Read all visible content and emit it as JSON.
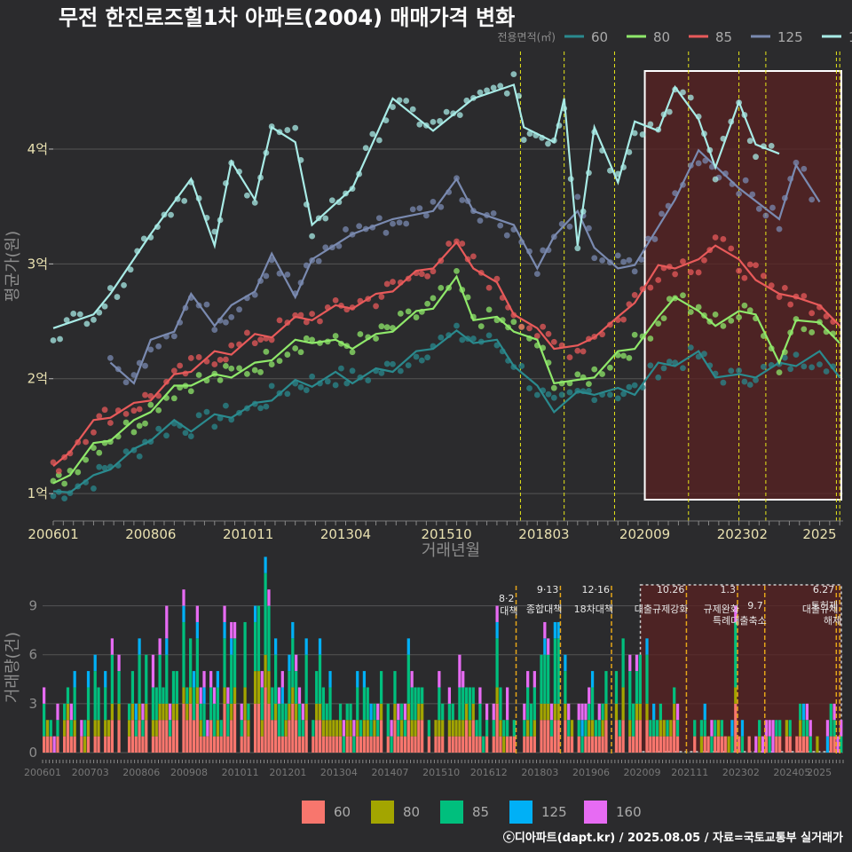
{
  "title": "무전 한진로즈힐1차 아파트(2004) 매매가격 변화",
  "footer": "ⓒ디아파트(dapt.kr) / 2025.08.05 / 자료=국토교통부 실거래가",
  "colors": {
    "background": "#2b2b2d",
    "grid": "#555555",
    "highlight_fill": "#5a2222",
    "event_line": "#e6e619",
    "event_line_bottom": "#e6a619"
  },
  "chart_data": [
    {
      "type": "line",
      "title": "무전 한진로즈힐1차 아파트(2004) 매매가격 변화",
      "xlabel": "거래년월",
      "ylabel": "평균가(원)",
      "x_ticks": [
        "200601",
        "200806",
        "201011",
        "201304",
        "201510",
        "201803",
        "202009",
        "202302",
        "2025"
      ],
      "y_ticks": [
        {
          "value": 1,
          "label": "1억"
        },
        {
          "value": 2,
          "label": "2억"
        },
        {
          "value": 3,
          "label": "3억"
        },
        {
          "value": 4,
          "label": "4억"
        }
      ],
      "ylim": [
        0.8,
        4.85
      ],
      "x_range": [
        "2006-01",
        "2025-08"
      ],
      "legend_title": "전용면적(㎡)",
      "legend_position": "top-right",
      "highlight": {
        "x_start": "2020-09",
        "x_end": "2025-08"
      },
      "events": [
        "2017-08",
        "2018-09",
        "2019-12",
        "2021-10",
        "2023-01",
        "2023-09",
        "2025-06",
        "2025-07"
      ],
      "series": [
        {
          "name": "60",
          "color": "#2a8a8e",
          "values": [
            [
              "2006-01",
              0.98
            ],
            [
              "2006-06",
              1.05
            ],
            [
              "2007-01",
              1.12
            ],
            [
              "2007-06",
              1.25
            ],
            [
              "2008-01",
              1.35
            ],
            [
              "2008-06",
              1.5
            ],
            [
              "2009-01",
              1.6
            ],
            [
              "2009-06",
              1.58
            ],
            [
              "2010-01",
              1.65
            ],
            [
              "2010-06",
              1.7
            ],
            [
              "2011-01",
              1.75
            ],
            [
              "2011-06",
              1.85
            ],
            [
              "2012-01",
              1.95
            ],
            [
              "2012-06",
              1.97
            ],
            [
              "2013-01",
              2.02
            ],
            [
              "2013-06",
              2.0
            ],
            [
              "2014-01",
              2.05
            ],
            [
              "2014-06",
              2.1
            ],
            [
              "2015-01",
              2.2
            ],
            [
              "2015-06",
              2.3
            ],
            [
              "2016-01",
              2.38
            ],
            [
              "2016-06",
              2.35
            ],
            [
              "2017-01",
              2.3
            ],
            [
              "2017-06",
              2.15
            ],
            [
              "2018-01",
              1.9
            ],
            [
              "2018-06",
              1.75
            ],
            [
              "2019-01",
              1.85
            ],
            [
              "2019-06",
              1.9
            ],
            [
              "2020-01",
              1.88
            ],
            [
              "2020-06",
              1.9
            ],
            [
              "2021-01",
              2.1
            ],
            [
              "2021-06",
              2.15
            ],
            [
              "2022-01",
              2.2
            ],
            [
              "2022-06",
              2.05
            ],
            [
              "2023-01",
              2.0
            ],
            [
              "2023-06",
              2.05
            ],
            [
              "2024-01",
              2.1
            ],
            [
              "2024-06",
              2.15
            ],
            [
              "2025-01",
              2.2
            ],
            [
              "2025-07",
              2.05
            ]
          ]
        },
        {
          "name": "80",
          "color": "#8fe86a",
          "values": [
            [
              "2006-01",
              1.05
            ],
            [
              "2006-06",
              1.2
            ],
            [
              "2007-01",
              1.4
            ],
            [
              "2007-06",
              1.5
            ],
            [
              "2008-01",
              1.6
            ],
            [
              "2008-06",
              1.75
            ],
            [
              "2009-01",
              1.9
            ],
            [
              "2009-06",
              1.98
            ],
            [
              "2010-01",
              2.0
            ],
            [
              "2010-06",
              2.05
            ],
            [
              "2011-01",
              2.1
            ],
            [
              "2011-06",
              2.2
            ],
            [
              "2012-01",
              2.3
            ],
            [
              "2012-06",
              2.35
            ],
            [
              "2013-01",
              2.3
            ],
            [
              "2013-06",
              2.3
            ],
            [
              "2014-01",
              2.35
            ],
            [
              "2014-06",
              2.45
            ],
            [
              "2015-01",
              2.55
            ],
            [
              "2015-06",
              2.65
            ],
            [
              "2016-01",
              2.85
            ],
            [
              "2016-06",
              2.55
            ],
            [
              "2017-01",
              2.5
            ],
            [
              "2017-06",
              2.45
            ],
            [
              "2018-01",
              2.3
            ],
            [
              "2018-06",
              2.0
            ],
            [
              "2019-01",
              1.95
            ],
            [
              "2019-06",
              2.05
            ],
            [
              "2020-01",
              2.2
            ],
            [
              "2020-06",
              2.3
            ],
            [
              "2021-01",
              2.5
            ],
            [
              "2021-06",
              2.75
            ],
            [
              "2022-01",
              2.55
            ],
            [
              "2022-06",
              2.5
            ],
            [
              "2023-01",
              2.55
            ],
            [
              "2023-06",
              2.6
            ],
            [
              "2024-01",
              2.1
            ],
            [
              "2024-06",
              2.55
            ],
            [
              "2025-01",
              2.45
            ],
            [
              "2025-07",
              2.35
            ]
          ]
        },
        {
          "name": "85",
          "color": "#e85a5a",
          "values": [
            [
              "2006-01",
              1.2
            ],
            [
              "2006-06",
              1.4
            ],
            [
              "2007-01",
              1.6
            ],
            [
              "2007-06",
              1.7
            ],
            [
              "2008-01",
              1.75
            ],
            [
              "2008-06",
              1.85
            ],
            [
              "2009-01",
              2.0
            ],
            [
              "2009-06",
              2.1
            ],
            [
              "2010-01",
              2.2
            ],
            [
              "2010-06",
              2.25
            ],
            [
              "2011-01",
              2.35
            ],
            [
              "2011-06",
              2.4
            ],
            [
              "2012-01",
              2.5
            ],
            [
              "2012-06",
              2.55
            ],
            [
              "2013-01",
              2.6
            ],
            [
              "2013-06",
              2.65
            ],
            [
              "2014-01",
              2.7
            ],
            [
              "2014-06",
              2.8
            ],
            [
              "2015-01",
              2.9
            ],
            [
              "2015-06",
              3.0
            ],
            [
              "2016-01",
              3.15
            ],
            [
              "2016-06",
              3.0
            ],
            [
              "2017-01",
              2.8
            ],
            [
              "2017-06",
              2.6
            ],
            [
              "2018-01",
              2.4
            ],
            [
              "2018-06",
              2.3
            ],
            [
              "2019-01",
              2.25
            ],
            [
              "2019-06",
              2.4
            ],
            [
              "2020-01",
              2.5
            ],
            [
              "2020-06",
              2.7
            ],
            [
              "2021-01",
              2.95
            ],
            [
              "2021-06",
              3.0
            ],
            [
              "2022-01",
              3.0
            ],
            [
              "2022-06",
              3.2
            ],
            [
              "2023-01",
              3.0
            ],
            [
              "2023-06",
              2.9
            ],
            [
              "2024-01",
              2.7
            ],
            [
              "2024-06",
              2.75
            ],
            [
              "2025-01",
              2.6
            ],
            [
              "2025-07",
              2.5
            ]
          ]
        },
        {
          "name": "125",
          "color": "#7a8ab0",
          "values": [
            [
              "2007-06",
              2.1
            ],
            [
              "2008-01",
              2.0
            ],
            [
              "2008-06",
              2.3
            ],
            [
              "2009-01",
              2.45
            ],
            [
              "2009-06",
              2.7
            ],
            [
              "2010-01",
              2.5
            ],
            [
              "2010-06",
              2.6
            ],
            [
              "2011-01",
              2.8
            ],
            [
              "2011-06",
              3.05
            ],
            [
              "2012-01",
              2.75
            ],
            [
              "2012-06",
              3.0
            ],
            [
              "2013-06",
              3.3
            ],
            [
              "2014-06",
              3.35
            ],
            [
              "2015-06",
              3.5
            ],
            [
              "2016-01",
              3.7
            ],
            [
              "2016-06",
              3.5
            ],
            [
              "2017-06",
              3.3
            ],
            [
              "2018-01",
              3.0
            ],
            [
              "2018-06",
              3.2
            ],
            [
              "2019-01",
              3.5
            ],
            [
              "2019-06",
              3.1
            ],
            [
              "2020-01",
              3.0
            ],
            [
              "2020-06",
              2.95
            ],
            [
              "2021-06",
              3.6
            ],
            [
              "2022-01",
              3.95
            ],
            [
              "2023-01",
              3.7
            ],
            [
              "2024-01",
              3.35
            ],
            [
              "2024-06",
              3.9
            ],
            [
              "2025-01",
              3.5
            ]
          ]
        },
        {
          "name": "160",
          "color": "#a8ebe6",
          "values": [
            [
              "2006-01",
              2.4
            ],
            [
              "2007-01",
              2.6
            ],
            [
              "2007-06",
              2.7
            ],
            [
              "2008-06",
              3.3
            ],
            [
              "2009-06",
              3.7
            ],
            [
              "2010-01",
              3.2
            ],
            [
              "2010-06",
              3.85
            ],
            [
              "2011-01",
              3.6
            ],
            [
              "2011-06",
              4.15
            ],
            [
              "2012-01",
              4.1
            ],
            [
              "2012-06",
              3.3
            ],
            [
              "2013-06",
              3.7
            ],
            [
              "2014-06",
              4.4
            ],
            [
              "2015-06",
              4.2
            ],
            [
              "2016-06",
              4.4
            ],
            [
              "2017-06",
              4.6
            ],
            [
              "2017-09",
              4.15
            ],
            [
              "2018-06",
              4.1
            ],
            [
              "2018-09",
              4.4
            ],
            [
              "2019-01",
              3.2
            ],
            [
              "2019-06",
              4.15
            ],
            [
              "2020-01",
              3.75
            ],
            [
              "2020-06",
              4.2
            ],
            [
              "2021-01",
              4.2
            ],
            [
              "2021-06",
              4.5
            ],
            [
              "2022-01",
              4.3
            ],
            [
              "2022-06",
              3.8
            ],
            [
              "2023-01",
              4.45
            ],
            [
              "2023-06",
              4.0
            ],
            [
              "2024-01",
              4.0
            ]
          ]
        }
      ]
    },
    {
      "type": "bar",
      "ylabel": "거래량(건)",
      "ylim": [
        0,
        10.5
      ],
      "y_ticks": [
        0,
        3,
        6,
        9
      ],
      "x_ticks": [
        "200601",
        "200703",
        "200806",
        "200908",
        "201011",
        "201201",
        "201304",
        "201407",
        "201510",
        "201612",
        "201803",
        "201906",
        "202009",
        "202111",
        "202302",
        "202405",
        "2025"
      ],
      "stacked": true,
      "legend_position": "bottom",
      "series_names": [
        "60",
        "80",
        "85",
        "125",
        "160"
      ],
      "series_colors": [
        "#f8766d",
        "#a3a500",
        "#00bf7d",
        "#00b0f6",
        "#e76bf3"
      ],
      "sample_months": [
        "2006-06",
        "2007-06",
        "2008-06",
        "2009-06",
        "2010-06",
        "2011-06",
        "2012-06",
        "2013-06",
        "2014-06",
        "2015-06",
        "2016-06",
        "2017-06",
        "2018-06",
        "2019-06",
        "2020-06",
        "2021-06",
        "2022-06",
        "2023-06",
        "2024-06",
        "2025-06"
      ],
      "sample_totals": [
        3,
        5,
        6,
        7,
        5,
        8,
        5,
        4,
        4,
        5,
        4,
        3,
        6,
        4,
        5,
        4,
        2,
        2,
        2,
        3
      ],
      "events": [
        {
          "date": "2017-08",
          "label": "8·2 대책"
        },
        {
          "date": "2018-09",
          "label": "9·13 종합대책"
        },
        {
          "date": "2019-12",
          "label": "12·16 18차대책"
        },
        {
          "date": "2021-10",
          "label": "10.26 대출규제강화"
        },
        {
          "date": "2023-01",
          "label": "1.3 규제완화"
        },
        {
          "date": "2023-09",
          "label": "9.7 특례대출축소"
        },
        {
          "date": "2025-06",
          "label": "6.27 대출규제"
        },
        {
          "date": "2025-07",
          "label": "토허제 해제"
        }
      ]
    }
  ]
}
